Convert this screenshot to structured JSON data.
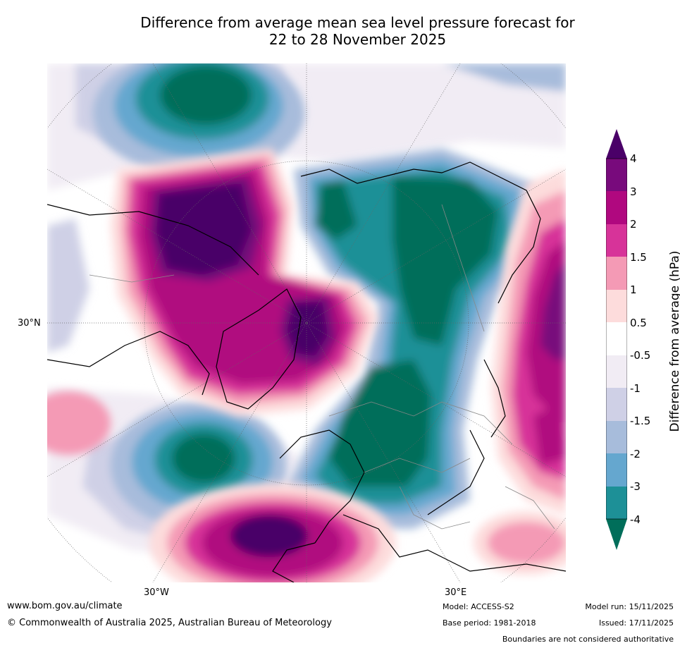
{
  "title_line1": "Difference from average mean sea level pressure forecast for",
  "title_line2": "22 to 28 November 2025",
  "axis_labels": {
    "lat30n": "30°N",
    "lon30w": "30°W",
    "lon30e": "30°E"
  },
  "colorbar": {
    "title": "Difference from average (hPa)",
    "ticks": [
      "4",
      "3",
      "2",
      "1.5",
      "1",
      "0.5",
      "-0.5",
      "-1",
      "-1.5",
      "-2",
      "-3",
      "-4"
    ],
    "colors": {
      "over": "#4a0068",
      "b34": "#780a7c",
      "b23": "#b0087f",
      "b152": "#d73399",
      "b115": "#f49ab5",
      "b051": "#fddcdc",
      "zero": "#ffffff",
      "n05": "#f1ecf4",
      "n1": "#cfd0e6",
      "n15": "#a7bcdb",
      "n2": "#65a7cf",
      "n3": "#1d9097",
      "under": "#006e5a"
    }
  },
  "footer": {
    "url": "www.bom.gov.au/climate",
    "copyright": "© Commonwealth of Australia 2025, Australian Bureau of Meteorology",
    "model": "Model: ACCESS-S2",
    "base_period": "Base period: 1981-2018",
    "model_run": "Model run: 15/11/2025",
    "issued": "Issued: 17/11/2025",
    "disclaimer": "Boundaries are not considered authoritative"
  }
}
